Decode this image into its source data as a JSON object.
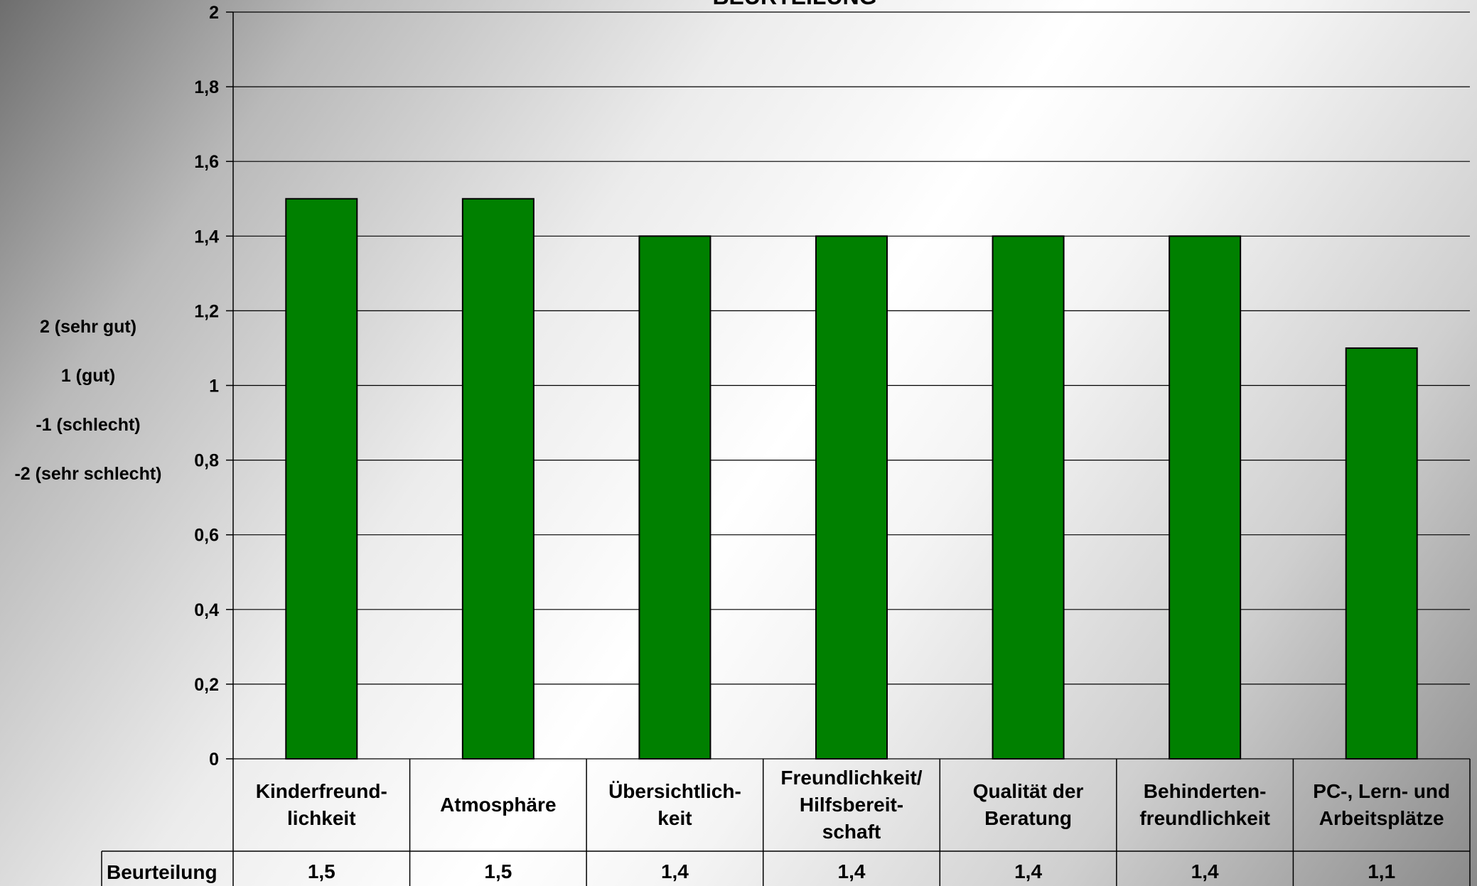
{
  "chart_data": {
    "type": "bar",
    "title": "BEURTEILUNG",
    "categories": [
      [
        "Kinderfreund-",
        "lichkeit"
      ],
      [
        "Atmosphäre"
      ],
      [
        "Übersichtlich-",
        "keit"
      ],
      [
        "Freundlichkeit/",
        "Hilfsbereit-",
        "schaft"
      ],
      [
        "Qualität der",
        "Beratung"
      ],
      [
        "Behinderten-",
        "freundlichkeit"
      ],
      [
        "PC-, Lern- und",
        "Arbeitsplätze"
      ]
    ],
    "series": [
      {
        "name": "Beurteilung",
        "values": [
          1.5,
          1.5,
          1.4,
          1.4,
          1.4,
          1.4,
          1.1
        ],
        "color": "#008000"
      }
    ],
    "data_labels": [
      "1,5",
      "1,5",
      "1,4",
      "1,4",
      "1,4",
      "1,4",
      "1,1"
    ],
    "yticks": [
      "0",
      "0,2",
      "0,4",
      "0,6",
      "0,8",
      "1",
      "1,2",
      "1,4",
      "1,6",
      "1,8",
      "2"
    ],
    "ylim": [
      0,
      2
    ],
    "grid": true,
    "data_table": true
  },
  "legend_scale": [
    "2 (sehr gut)",
    "1 (gut)",
    "-1 (schlecht)",
    "-2 (sehr schlecht)"
  ]
}
